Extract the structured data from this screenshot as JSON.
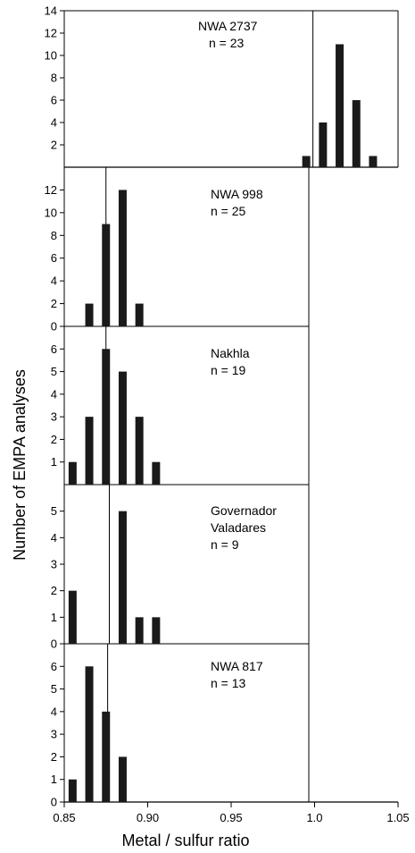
{
  "chart_data": {
    "type": "bar",
    "xlabel": "Metal / sulfur ratio",
    "ylabel": "Number of EMPA analyses",
    "xlim": [
      0.85,
      1.05
    ],
    "xticks": [
      0.85,
      0.9,
      0.95,
      1.0,
      1.05
    ],
    "xtick_labels": [
      "0.85",
      "0.90",
      "0.95",
      "1.0",
      "1.05"
    ],
    "bar_color": "#1a1a1a",
    "grid": false,
    "panels": [
      {
        "name": "NWA 2737",
        "n_label": "n = 23",
        "ylim": [
          0,
          14
        ],
        "yticks": [
          2,
          4,
          6,
          8,
          10,
          12,
          14
        ],
        "vline": 0.999,
        "x": [
          0.995,
          1.005,
          1.015,
          1.025,
          1.035
        ],
        "values": [
          1,
          4,
          11,
          6,
          1
        ]
      },
      {
        "name": "NWA 998",
        "n_label": "n = 25",
        "ylim": [
          0,
          14
        ],
        "yticks": [
          0,
          2,
          4,
          6,
          8,
          10,
          12
        ],
        "vline": 0.875,
        "x": [
          0.865,
          0.875,
          0.885,
          0.895
        ],
        "values": [
          2,
          9,
          12,
          2
        ]
      },
      {
        "name": "Nakhla",
        "n_label": "n = 19",
        "ylim": [
          0,
          7
        ],
        "yticks": [
          1,
          2,
          3,
          4,
          5,
          6
        ],
        "vline": 0.875,
        "x": [
          0.855,
          0.865,
          0.875,
          0.885,
          0.895,
          0.905
        ],
        "values": [
          1,
          3,
          6,
          5,
          3,
          1
        ]
      },
      {
        "name": "Governador Valadares",
        "name_lines": [
          "Governador",
          "Valadares"
        ],
        "n_label": "n = 9",
        "ylim": [
          0,
          6
        ],
        "yticks": [
          0,
          1,
          2,
          3,
          4,
          5
        ],
        "vline": 0.877,
        "x": [
          0.855,
          0.885,
          0.895,
          0.905
        ],
        "values": [
          2,
          5,
          1,
          1
        ]
      },
      {
        "name": "NWA 817",
        "n_label": "n = 13",
        "ylim": [
          0,
          7
        ],
        "yticks": [
          0,
          1,
          2,
          3,
          4,
          5,
          6
        ],
        "vline": 0.876,
        "x": [
          0.855,
          0.865,
          0.875,
          0.885
        ],
        "values": [
          1,
          6,
          4,
          2
        ]
      }
    ]
  }
}
